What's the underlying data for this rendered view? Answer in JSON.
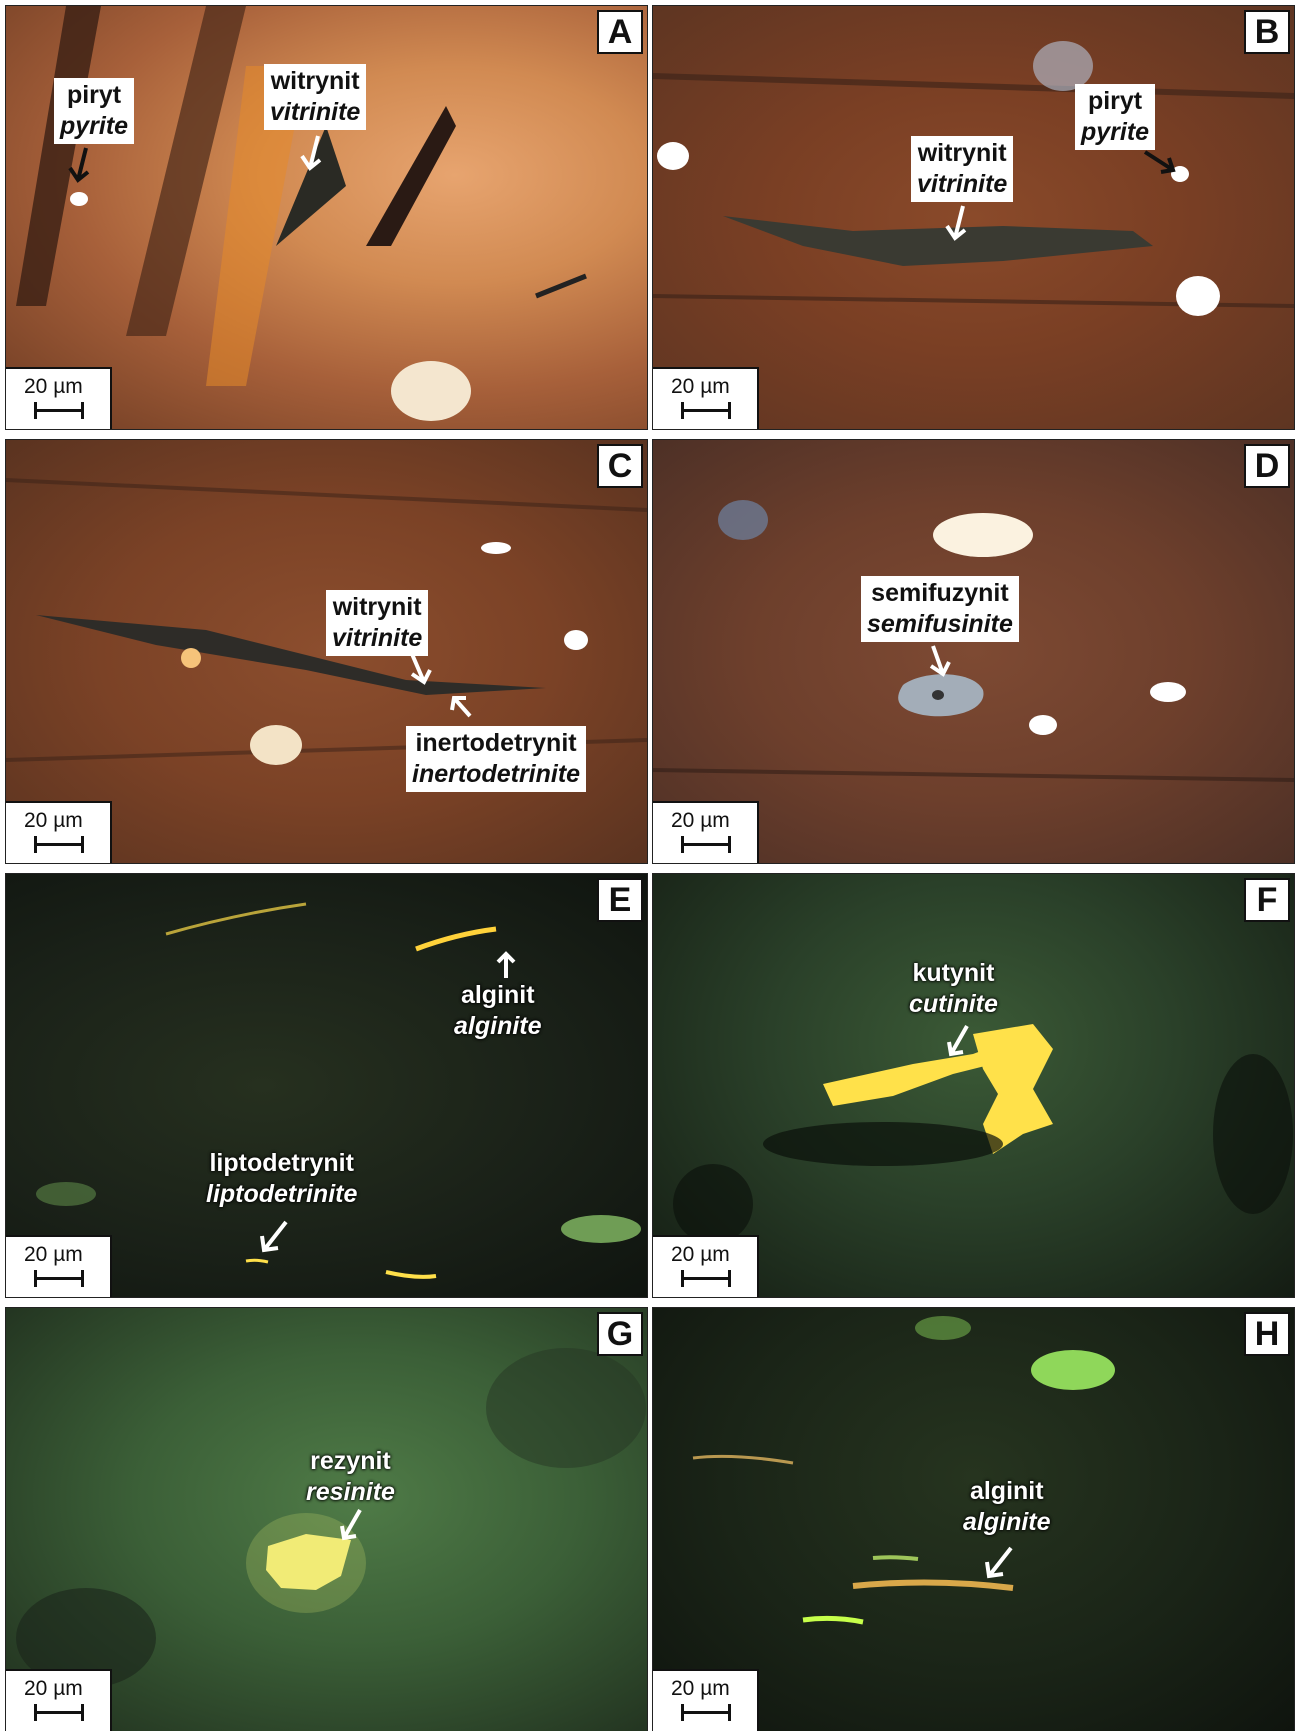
{
  "scale_label": "20 µm",
  "panels": {
    "A": {
      "letter": "A",
      "labels": [
        {
          "pl": "piryt",
          "en": "pyrite"
        },
        {
          "pl": "witrynit",
          "en": "vitrinite"
        }
      ]
    },
    "B": {
      "letter": "B",
      "labels": [
        {
          "pl": "witrynit",
          "en": "vitrinite"
        },
        {
          "pl": "piryt",
          "en": "pyrite"
        }
      ]
    },
    "C": {
      "letter": "C",
      "labels": [
        {
          "pl": "witrynit",
          "en": "vitrinite"
        },
        {
          "pl": "inertodetrynit",
          "en": "inertodetrinite"
        }
      ]
    },
    "D": {
      "letter": "D",
      "labels": [
        {
          "pl": "semifuzynit",
          "en": "semifusinite"
        }
      ]
    },
    "E": {
      "letter": "E",
      "labels": [
        {
          "pl": "alginit",
          "en": "alginite"
        },
        {
          "pl": "liptodetrynit",
          "en": "liptodetrinite"
        }
      ]
    },
    "F": {
      "letter": "F",
      "labels": [
        {
          "pl": "kutynit",
          "en": "cutinite"
        }
      ]
    },
    "G": {
      "letter": "G",
      "labels": [
        {
          "pl": "rezynit",
          "en": "resinite"
        }
      ]
    },
    "H": {
      "letter": "H",
      "labels": [
        {
          "pl": "alginit",
          "en": "alginite"
        }
      ]
    }
  }
}
